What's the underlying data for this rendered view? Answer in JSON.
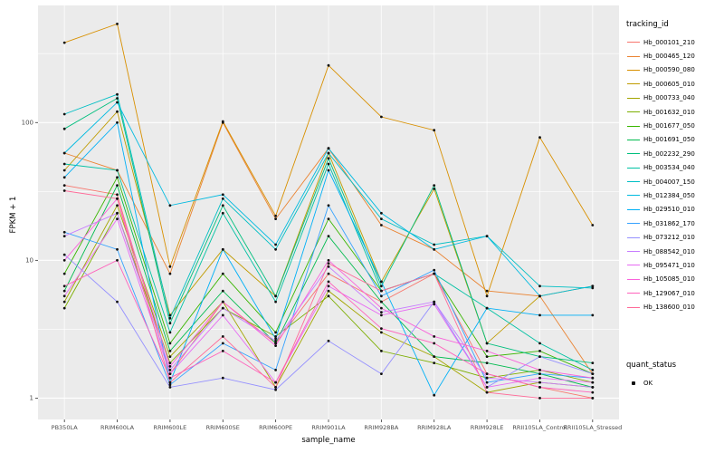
{
  "chart_data": {
    "type": "line",
    "title": "",
    "xlabel": "sample_name",
    "ylabel": "FPKM + 1",
    "y_scale": "log10",
    "y_ticks": [
      1,
      10,
      100
    ],
    "y_tick_labels": [
      "1",
      "10",
      "100"
    ],
    "ylim": [
      0.7,
      700
    ],
    "grid": true,
    "legend_position": "right",
    "panel_bg": "#EBEBEB",
    "grid_color": "#FFFFFF",
    "point_color": "#111111",
    "categories": [
      "PB350LA",
      "RRIM600LA",
      "RRIM600LE",
      "RRIM600SE",
      "RRIM600PE",
      "RRIM901LA",
      "RRIM928BA",
      "RRIM928LA",
      "RRIM928LE",
      "RRII105LA_Control",
      "RRII105LA_Stressed"
    ],
    "legend": {
      "color_title": "tracking_id",
      "shape_title": "quant_status",
      "shape_items": [
        {
          "label": "OK"
        }
      ]
    },
    "series": [
      {
        "name": "Hb_000101_210",
        "color": "#F8766D",
        "values": [
          35,
          30,
          1.5,
          5,
          2.5,
          8,
          5,
          8,
          1.5,
          1.2,
          1.0
        ]
      },
      {
        "name": "Hb_000465_120",
        "color": "#EA8331",
        "values": [
          60,
          45,
          8,
          100,
          20,
          65,
          18,
          12,
          6,
          5.5,
          1.5
        ]
      },
      {
        "name": "Hb_000590_080",
        "color": "#D89000",
        "values": [
          380,
          520,
          9,
          102,
          21,
          260,
          110,
          88,
          5.5,
          78,
          18
        ]
      },
      {
        "name": "Hb_000605_010",
        "color": "#C09B00",
        "values": [
          45,
          120,
          4,
          12,
          5.5,
          60,
          7,
          33,
          2.5,
          5.5,
          6.5
        ]
      },
      {
        "name": "Hb_000733_040",
        "color": "#A3A500",
        "values": [
          5,
          25,
          2,
          5,
          1.2,
          6,
          3,
          2,
          1.1,
          1.3,
          1.2
        ]
      },
      {
        "name": "Hb_001632_010",
        "color": "#7CAE00",
        "values": [
          4.5,
          22,
          1.8,
          4.5,
          2.8,
          5.5,
          2.2,
          1.8,
          1.4,
          1.6,
          1.3
        ]
      },
      {
        "name": "Hb_001677_050",
        "color": "#39B600",
        "values": [
          8,
          40,
          2.5,
          8,
          3,
          20,
          6,
          8,
          2,
          2.2,
          1.5
        ]
      },
      {
        "name": "Hb_001691_050",
        "color": "#00BB4E",
        "values": [
          6,
          35,
          2.2,
          6,
          2.5,
          15,
          5,
          2,
          1.8,
          1.5,
          1.2
        ]
      },
      {
        "name": "Hb_002232_290",
        "color": "#00BF7D",
        "values": [
          90,
          150,
          3.5,
          25,
          5.5,
          55,
          6.5,
          35,
          2.5,
          2,
          1.8
        ]
      },
      {
        "name": "Hb_003534_040",
        "color": "#00C1A3",
        "values": [
          50,
          45,
          3,
          22,
          5,
          50,
          6,
          8,
          4.5,
          2.5,
          1.6
        ]
      },
      {
        "name": "Hb_004007_150",
        "color": "#00BFC4",
        "values": [
          115,
          160,
          3.8,
          28,
          12,
          60,
          20,
          13,
          15,
          6.5,
          6.3
        ]
      },
      {
        "name": "Hb_012384_050",
        "color": "#00BAE0",
        "values": [
          60,
          140,
          25,
          30,
          13,
          65,
          22,
          12,
          15,
          5.5,
          6.5
        ]
      },
      {
        "name": "Hb_029510_010",
        "color": "#00B0F6",
        "values": [
          40,
          100,
          1.3,
          12,
          2.7,
          45,
          7,
          1.05,
          4.5,
          4,
          4
        ]
      },
      {
        "name": "Hb_031862_170",
        "color": "#35A2FF",
        "values": [
          16,
          12,
          1.25,
          2.5,
          1.6,
          25,
          5.5,
          8.5,
          1.3,
          1.5,
          1.4
        ]
      },
      {
        "name": "Hb_073212_010",
        "color": "#9590FF",
        "values": [
          11,
          5,
          1.2,
          1.4,
          1.15,
          2.6,
          1.5,
          5,
          1.2,
          2,
          1.5
        ]
      },
      {
        "name": "Hb_088542_010",
        "color": "#C77CFF",
        "values": [
          15,
          22,
          1.6,
          4.5,
          2.6,
          9,
          4.2,
          5,
          1.4,
          1.3,
          1.2
        ]
      },
      {
        "name": "Hb_095471_010",
        "color": "#E76BF3",
        "values": [
          5.5,
          20,
          1.5,
          4,
          1.3,
          6.5,
          4,
          4.8,
          1.2,
          1.4,
          1.3
        ]
      },
      {
        "name": "Hb_105085_010",
        "color": "#FA62DB",
        "values": [
          10,
          28,
          1.7,
          5,
          2.4,
          10,
          4.5,
          2.8,
          2.2,
          1.6,
          1.4
        ]
      },
      {
        "name": "Hb_129067_010",
        "color": "#FF62BC",
        "values": [
          6.5,
          10,
          1.4,
          2.2,
          1.3,
          7,
          3.2,
          2.5,
          1.5,
          1.2,
          1.1
        ]
      },
      {
        "name": "Hb_138600_010",
        "color": "#FF6A98",
        "values": [
          32,
          28,
          1.3,
          2.8,
          1.2,
          9.5,
          6,
          8,
          1.1,
          1.0,
          1.0
        ]
      }
    ]
  }
}
